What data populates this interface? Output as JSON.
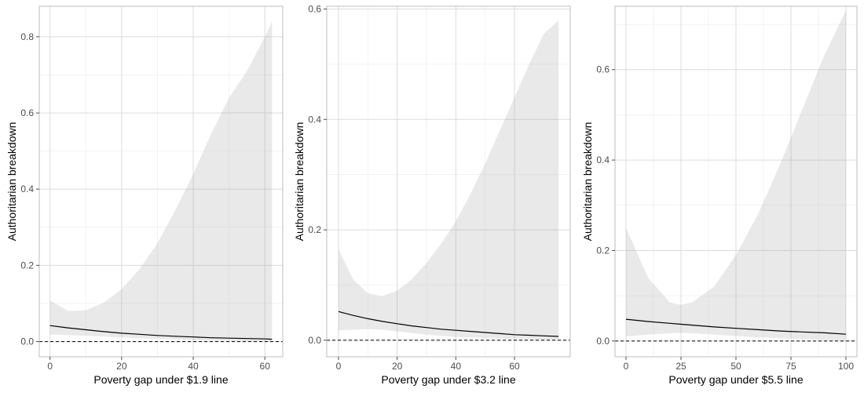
{
  "chart_data": [
    {
      "type": "line",
      "xlabel": "Poverty gap under $1.9 line",
      "ylabel": "Authoritarian breakdown",
      "xlim": [
        -3,
        65
      ],
      "ylim": [
        -0.04,
        0.88
      ],
      "xticks": [
        0,
        20,
        40,
        60
      ],
      "yticks": [
        0.0,
        0.2,
        0.4,
        0.6,
        0.8
      ],
      "ytick_labels": [
        "0.0",
        "0.2",
        "0.4",
        "0.6",
        "0.8"
      ],
      "reference_line": 0,
      "grid": true,
      "series": [
        {
          "x": [
            0,
            5,
            10,
            15,
            20,
            25,
            30,
            35,
            40,
            45,
            50,
            55,
            60,
            62
          ],
          "y": [
            0.042,
            0.036,
            0.031,
            0.026,
            0.022,
            0.019,
            0.016,
            0.014,
            0.012,
            0.01,
            0.009,
            0.008,
            0.007,
            0.006
          ],
          "lower": [
            0.018,
            0.017,
            0.015,
            0.013,
            0.011,
            0.009,
            0.007,
            0.006,
            0.004,
            0.003,
            0.002,
            0.001,
            0.001,
            0.0
          ],
          "upper": [
            0.108,
            0.08,
            0.082,
            0.102,
            0.138,
            0.19,
            0.258,
            0.345,
            0.44,
            0.545,
            0.64,
            0.71,
            0.8,
            0.84
          ]
        }
      ]
    },
    {
      "type": "line",
      "xlabel": "Poverty gap under $3.2 line",
      "ylabel": "Authoritarian breakdown",
      "xlim": [
        -4,
        79
      ],
      "ylim": [
        -0.03,
        0.605
      ],
      "xticks": [
        0,
        20,
        40,
        60
      ],
      "yticks": [
        0.0,
        0.2,
        0.4,
        0.6
      ],
      "ytick_labels": [
        "0.0",
        "0.2",
        "0.4",
        "0.6"
      ],
      "reference_line": 0,
      "grid": true,
      "series": [
        {
          "x": [
            0,
            5,
            10,
            15,
            20,
            25,
            30,
            35,
            40,
            45,
            50,
            55,
            60,
            65,
            70,
            75
          ],
          "y": [
            0.052,
            0.045,
            0.039,
            0.034,
            0.03,
            0.026,
            0.023,
            0.02,
            0.018,
            0.016,
            0.014,
            0.012,
            0.01,
            0.009,
            0.008,
            0.007
          ],
          "lower": [
            0.018,
            0.019,
            0.02,
            0.019,
            0.016,
            0.013,
            0.01,
            0.008,
            0.006,
            0.005,
            0.004,
            0.003,
            0.002,
            0.002,
            0.001,
            0.001
          ],
          "upper": [
            0.165,
            0.11,
            0.085,
            0.08,
            0.09,
            0.11,
            0.14,
            0.175,
            0.215,
            0.265,
            0.32,
            0.38,
            0.44,
            0.5,
            0.555,
            0.58
          ]
        }
      ]
    },
    {
      "type": "line",
      "xlabel": "Poverty gap under $5.5 line",
      "ylabel": "Authoritarian breakdown",
      "xlim": [
        -5,
        105
      ],
      "ylim": [
        -0.035,
        0.74
      ],
      "xticks": [
        0,
        25,
        50,
        75,
        100
      ],
      "yticks": [
        0.0,
        0.2,
        0.4,
        0.6
      ],
      "ytick_labels": [
        "0.0",
        "0.2",
        "0.4",
        "0.6"
      ],
      "reference_line": 0,
      "grid": true,
      "series": [
        {
          "x": [
            0,
            10,
            20,
            25,
            30,
            40,
            50,
            60,
            70,
            80,
            90,
            100
          ],
          "y": [
            0.048,
            0.043,
            0.039,
            0.037,
            0.035,
            0.031,
            0.028,
            0.025,
            0.022,
            0.02,
            0.018,
            0.015
          ],
          "lower": [
            0.01,
            0.014,
            0.017,
            0.018,
            0.017,
            0.014,
            0.011,
            0.008,
            0.006,
            0.004,
            0.002,
            0.001
          ],
          "upper": [
            0.25,
            0.14,
            0.085,
            0.08,
            0.085,
            0.12,
            0.19,
            0.28,
            0.39,
            0.51,
            0.63,
            0.73
          ]
        }
      ]
    }
  ]
}
